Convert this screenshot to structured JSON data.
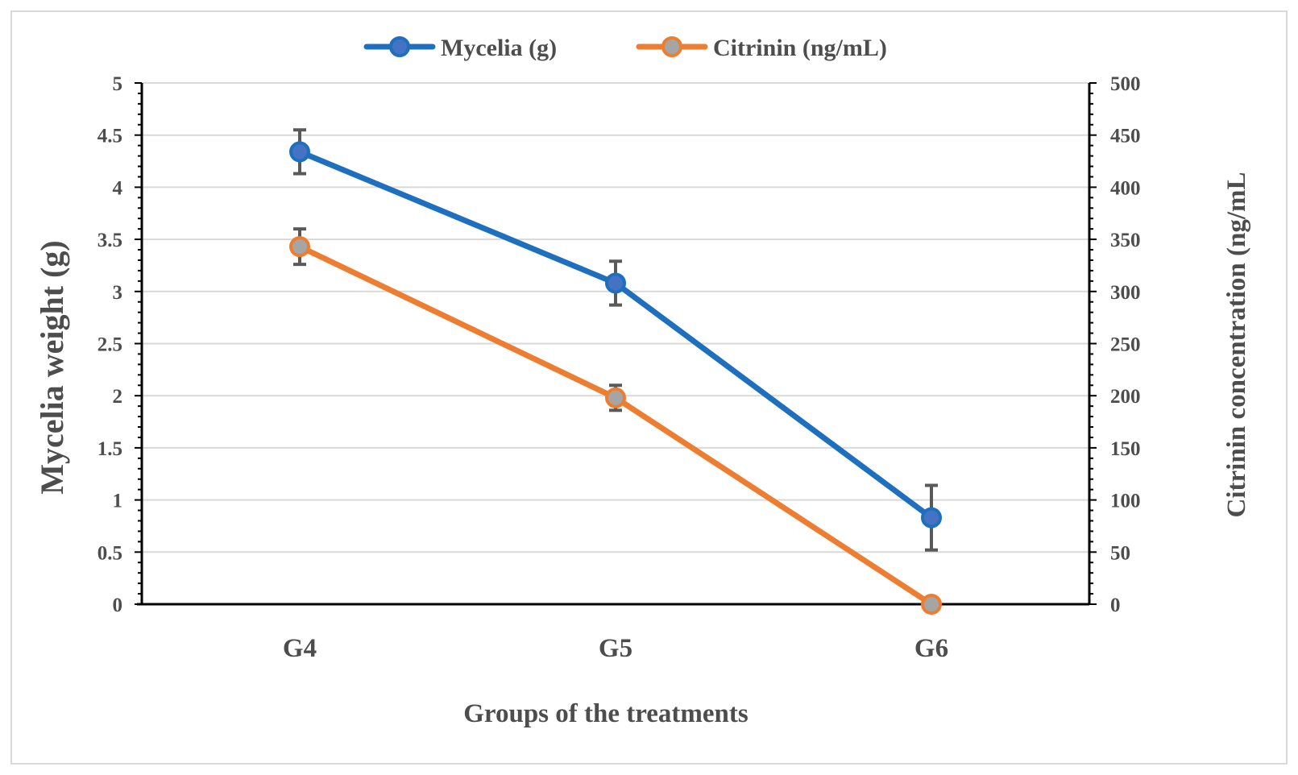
{
  "chart_data": {
    "type": "line",
    "title": "",
    "categories": [
      "G4",
      "G5",
      "G6"
    ],
    "xlabel": "Groups of the treatments",
    "ylabel": "Mycelia weight  (g)",
    "ylabel_right": "Citrinin  concentration (ng/mL",
    "ylim": [
      0,
      5
    ],
    "ylim_right": [
      0,
      500
    ],
    "yticks": [
      "0",
      "0.5",
      "1",
      "1.5",
      "2",
      "2.5",
      "3",
      "3.5",
      "4",
      "4.5",
      "5"
    ],
    "yticks_right": [
      "0",
      "50",
      "100",
      "150",
      "200",
      "250",
      "300",
      "350",
      "400",
      "450",
      "500"
    ],
    "grid": true,
    "legend_position": "top",
    "series": [
      {
        "name": "Mycelia (g)",
        "axis": "left",
        "color": "#1f6fbf",
        "marker_color": "#4472c4",
        "values": [
          4.34,
          3.08,
          0.83
        ],
        "errors": [
          0.21,
          0.21,
          0.31
        ]
      },
      {
        "name": "Citrinin (ng/mL)",
        "axis": "right",
        "color": "#ed7d31",
        "marker_color": "#a5a5a5",
        "values": [
          343,
          198,
          0
        ],
        "errors": [
          17,
          12,
          0
        ]
      }
    ]
  }
}
